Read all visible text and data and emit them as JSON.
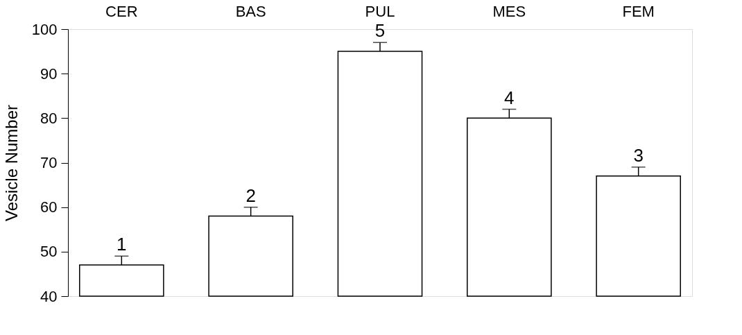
{
  "chart_data": {
    "type": "bar",
    "ylabel": "Vesicle Number",
    "categories": [
      "CER",
      "BAS",
      "PUL",
      "MES",
      "FEM"
    ],
    "values": [
      47,
      58,
      95,
      80,
      67
    ],
    "errors": [
      [
        47,
        49
      ],
      [
        58,
        60
      ],
      [
        95,
        97
      ],
      [
        80,
        82
      ],
      [
        67,
        69
      ]
    ],
    "annotations": [
      {
        "text": "1",
        "x": "CER",
        "y": 49
      },
      {
        "text": "2",
        "x": "BAS",
        "y": 60
      },
      {
        "text": "5",
        "x": "PUL",
        "y": 97
      },
      {
        "text": "4",
        "x": "MES",
        "y": 82
      },
      {
        "text": "3",
        "x": "FEM",
        "y": 69
      }
    ],
    "color": "#ffffff",
    "ylim": [
      40,
      100
    ],
    "yticks": [
      40,
      50,
      60,
      70,
      80,
      90,
      100
    ],
    "grid": false
  }
}
